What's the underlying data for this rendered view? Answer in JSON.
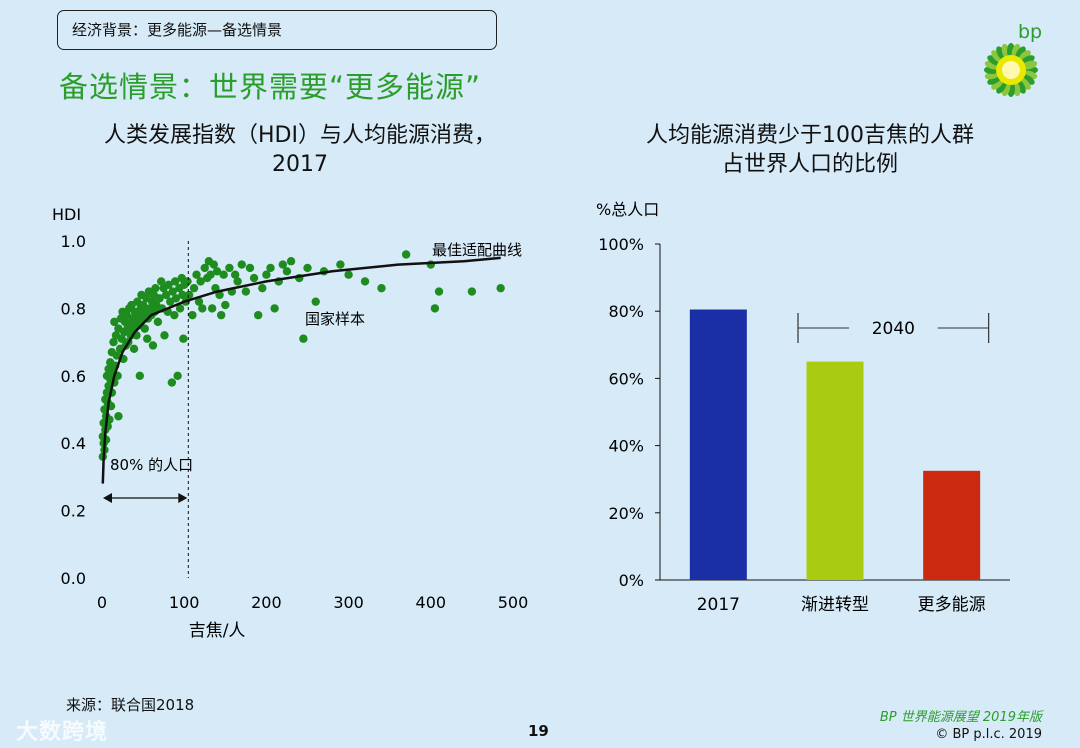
{
  "header": {
    "section_label": "经济背景：更多能源—备选情景",
    "title": "备选情景：世界需要“更多能源”"
  },
  "logo": {
    "text": "bp"
  },
  "colors": {
    "background": "#d6eaf8",
    "title_green": "#2a9d2a",
    "dot_green": "#1e8c1e"
  },
  "footer": {
    "source": "来源：联合国2018",
    "page": "19",
    "brand": "BP 世界能源展望 2019年版",
    "copyright": "© BP p.l.c. 2019",
    "watermark": "大数跨境"
  },
  "chart_data": [
    {
      "type": "scatter",
      "title": "人类发展指数（HDI）与人均能源消费，2017",
      "title_lines": [
        "人类发展指数（HDI）与人均能源消费，",
        "2017"
      ],
      "xlabel": "吉焦/人",
      "ylabel": "HDI",
      "xlim": [
        0,
        500
      ],
      "ylim": [
        0,
        1.0
      ],
      "xticks": [
        0,
        100,
        200,
        300,
        400,
        500
      ],
      "yticks": [
        0.0,
        0.2,
        0.4,
        0.6,
        0.8,
        1.0
      ],
      "xtick_labels": [
        "0",
        "100",
        "200",
        "300",
        "400",
        "500"
      ],
      "ytick_labels": [
        "0.0",
        "0.2",
        "0.4",
        "0.6",
        "0.8",
        "1.0"
      ],
      "series": [
        {
          "name": "国家样本",
          "points": [
            [
              1,
              0.36
            ],
            [
              1,
              0.42
            ],
            [
              2,
              0.4
            ],
            [
              2,
              0.46
            ],
            [
              3,
              0.38
            ],
            [
              3,
              0.5
            ],
            [
              4,
              0.44
            ],
            [
              4,
              0.53
            ],
            [
              5,
              0.41
            ],
            [
              5,
              0.48
            ],
            [
              6,
              0.55
            ],
            [
              6,
              0.6
            ],
            [
              7,
              0.45
            ],
            [
              7,
              0.52
            ],
            [
              8,
              0.57
            ],
            [
              8,
              0.62
            ],
            [
              9,
              0.47
            ],
            [
              10,
              0.59
            ],
            [
              10,
              0.64
            ],
            [
              11,
              0.51
            ],
            [
              12,
              0.55
            ],
            [
              12,
              0.67
            ],
            [
              13,
              0.61
            ],
            [
              14,
              0.7
            ],
            [
              15,
              0.58
            ],
            [
              15,
              0.76
            ],
            [
              16,
              0.63
            ],
            [
              17,
              0.72
            ],
            [
              18,
              0.66
            ],
            [
              19,
              0.6
            ],
            [
              20,
              0.48
            ],
            [
              20,
              0.74
            ],
            [
              22,
              0.68
            ],
            [
              23,
              0.77
            ],
            [
              24,
              0.71
            ],
            [
              25,
              0.79
            ],
            [
              26,
              0.65
            ],
            [
              27,
              0.73
            ],
            [
              28,
              0.76
            ],
            [
              29,
              0.69
            ],
            [
              30,
              0.78
            ],
            [
              31,
              0.74
            ],
            [
              32,
              0.7
            ],
            [
              33,
              0.8
            ],
            [
              34,
              0.75
            ],
            [
              35,
              0.72
            ],
            [
              36,
              0.81
            ],
            [
              37,
              0.77
            ],
            [
              38,
              0.74
            ],
            [
              39,
              0.68
            ],
            [
              40,
              0.79
            ],
            [
              41,
              0.76
            ],
            [
              42,
              0.72
            ],
            [
              43,
              0.82
            ],
            [
              44,
              0.78
            ],
            [
              45,
              0.75
            ],
            [
              46,
              0.6
            ],
            [
              47,
              0.8
            ],
            [
              48,
              0.84
            ],
            [
              49,
              0.77
            ],
            [
              50,
              0.81
            ],
            [
              52,
              0.74
            ],
            [
              53,
              0.79
            ],
            [
              54,
              0.83
            ],
            [
              55,
              0.71
            ],
            [
              56,
              0.77
            ],
            [
              57,
              0.85
            ],
            [
              58,
              0.8
            ],
            [
              60,
              0.78
            ],
            [
              61,
              0.82
            ],
            [
              62,
              0.69
            ],
            [
              63,
              0.84
            ],
            [
              64,
              0.79
            ],
            [
              65,
              0.86
            ],
            [
              66,
              0.81
            ],
            [
              68,
              0.76
            ],
            [
              70,
              0.83
            ],
            [
              72,
              0.88
            ],
            [
              73,
              0.8
            ],
            [
              75,
              0.86
            ],
            [
              76,
              0.72
            ],
            [
              78,
              0.84
            ],
            [
              80,
              0.79
            ],
            [
              81,
              0.87
            ],
            [
              83,
              0.82
            ],
            [
              85,
              0.58
            ],
            [
              86,
              0.85
            ],
            [
              88,
              0.78
            ],
            [
              89,
              0.88
            ],
            [
              90,
              0.83
            ],
            [
              92,
              0.6
            ],
            [
              94,
              0.86
            ],
            [
              95,
              0.8
            ],
            [
              97,
              0.89
            ],
            [
              98,
              0.84
            ],
            [
              99,
              0.71
            ],
            [
              100,
              0.87
            ],
            [
              102,
              0.82
            ],
            [
              104,
              0.88
            ],
            [
              106,
              0.84
            ],
            [
              110,
              0.78
            ],
            [
              112,
              0.86
            ],
            [
              115,
              0.9
            ],
            [
              118,
              0.82
            ],
            [
              120,
              0.88
            ],
            [
              122,
              0.8
            ],
            [
              125,
              0.92
            ],
            [
              128,
              0.89
            ],
            [
              130,
              0.94
            ],
            [
              132,
              0.9
            ],
            [
              134,
              0.8
            ],
            [
              136,
              0.93
            ],
            [
              138,
              0.86
            ],
            [
              140,
              0.91
            ],
            [
              143,
              0.84
            ],
            [
              145,
              0.78
            ],
            [
              148,
              0.9
            ],
            [
              150,
              0.81
            ],
            [
              155,
              0.92
            ],
            [
              158,
              0.85
            ],
            [
              162,
              0.9
            ],
            [
              165,
              0.88
            ],
            [
              170,
              0.93
            ],
            [
              175,
              0.85
            ],
            [
              180,
              0.92
            ],
            [
              185,
              0.89
            ],
            [
              190,
              0.78
            ],
            [
              195,
              0.86
            ],
            [
              200,
              0.9
            ],
            [
              205,
              0.92
            ],
            [
              210,
              0.8
            ],
            [
              215,
              0.88
            ],
            [
              220,
              0.93
            ],
            [
              225,
              0.91
            ],
            [
              230,
              0.94
            ],
            [
              240,
              0.89
            ],
            [
              245,
              0.71
            ],
            [
              250,
              0.92
            ],
            [
              260,
              0.82
            ],
            [
              270,
              0.91
            ],
            [
              290,
              0.93
            ],
            [
              300,
              0.9
            ],
            [
              320,
              0.88
            ],
            [
              340,
              0.86
            ],
            [
              370,
              0.96
            ],
            [
              400,
              0.93
            ],
            [
              405,
              0.8
            ],
            [
              410,
              0.85
            ],
            [
              450,
              0.85
            ],
            [
              485,
              0.86
            ]
          ]
        }
      ],
      "fit_curve": {
        "name": "最佳适配曲线",
        "points": [
          [
            1,
            0.28
          ],
          [
            2,
            0.35
          ],
          [
            4,
            0.43
          ],
          [
            8,
            0.52
          ],
          [
            15,
            0.6
          ],
          [
            25,
            0.67
          ],
          [
            40,
            0.73
          ],
          [
            60,
            0.78
          ],
          [
            80,
            0.8
          ],
          [
            100,
            0.82
          ],
          [
            140,
            0.85
          ],
          [
            200,
            0.88
          ],
          [
            280,
            0.91
          ],
          [
            360,
            0.93
          ],
          [
            440,
            0.94
          ],
          [
            485,
            0.95
          ]
        ]
      },
      "annotations": {
        "fit_label": "最佳适配曲线",
        "sample_label": "国家样本",
        "pop_label": "80% 的人口",
        "pop_line_x": 105
      }
    },
    {
      "type": "bar",
      "title": "人均能源消费少于100吉焦的人群占世界人口的比例",
      "title_lines": [
        "人均能源消费少于100吉焦的人群",
        "占世界人口的比例"
      ],
      "ylabel": "%总人口",
      "ylim": [
        0,
        100
      ],
      "yticks": [
        0,
        20,
        40,
        60,
        80,
        100
      ],
      "ytick_labels": [
        "0%",
        "20%",
        "40%",
        "60%",
        "80%",
        "100%"
      ],
      "categories": [
        "2017",
        "渐进转型",
        "更多能源"
      ],
      "values": [
        80.5,
        65,
        32.5
      ],
      "colors": [
        "#1a2fa6",
        "#a8cc10",
        "#cc2a10"
      ],
      "bracket_label": "2040"
    }
  ]
}
